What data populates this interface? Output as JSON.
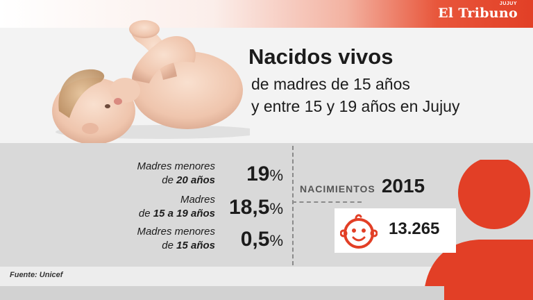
{
  "brand": {
    "logo": "El Tribuno",
    "region": "JUJUY",
    "accent": "#e23f26"
  },
  "header": {
    "title": "Nacidos vivos",
    "subtitle_line1": "de madres de 15 años",
    "subtitle_line2": "y entre 15 y 19 años en Jujuy"
  },
  "stats": [
    {
      "label_line1": "Madres menores",
      "label_line2_prefix": "de ",
      "label_line2_bold": "20 años",
      "value": "19",
      "unit": "%"
    },
    {
      "label_line1": "Madres",
      "label_line2_prefix": "de ",
      "label_line2_bold": "15 a 19 años",
      "value": "18,5",
      "unit": "%"
    },
    {
      "label_line1": "Madres menores",
      "label_line2_prefix": "de ",
      "label_line2_bold": "15 años",
      "value": "0,5",
      "unit": "%"
    }
  ],
  "births": {
    "label": "NACIMIENTOS",
    "year": "2015",
    "count": "13.265",
    "icon": "baby-face-icon"
  },
  "source": "Fuente: Unicef",
  "images": {
    "photo": "baby-photo",
    "figure": "red-person-silhouette"
  }
}
